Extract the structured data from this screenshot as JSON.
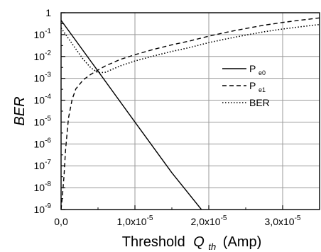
{
  "chart_data": {
    "type": "line",
    "title": "",
    "xlabel": "Threshold",
    "xlabel_var": "Q",
    "xlabel_sub": "th",
    "xlabel_unit": "(Amp)",
    "ylabel": "BER",
    "xlim": [
      0,
      3.5e-05
    ],
    "ylim": [
      1e-09,
      1
    ],
    "y_scale": "log",
    "grid": true,
    "legend_position": "right-middle",
    "x_ticks": [
      {
        "value": 0,
        "mantissa": "0,0",
        "exp": ""
      },
      {
        "value": 1e-05,
        "mantissa": "1,0x10",
        "exp": "-5"
      },
      {
        "value": 2e-05,
        "mantissa": "2,0x10",
        "exp": "-5"
      },
      {
        "value": 3e-05,
        "mantissa": "3,0x10",
        "exp": "-5"
      }
    ],
    "y_ticks": [
      {
        "value": 1,
        "base": "1",
        "exp": ""
      },
      {
        "value": 0.1,
        "base": "10",
        "exp": "-1"
      },
      {
        "value": 0.01,
        "base": "10",
        "exp": "-2"
      },
      {
        "value": 0.001,
        "base": "10",
        "exp": "-3"
      },
      {
        "value": 0.0001,
        "base": "10",
        "exp": "-4"
      },
      {
        "value": 1e-05,
        "base": "10",
        "exp": "-5"
      },
      {
        "value": 1e-06,
        "base": "10",
        "exp": "-6"
      },
      {
        "value": 1e-07,
        "base": "10",
        "exp": "-7"
      },
      {
        "value": 1e-08,
        "base": "10",
        "exp": "-8"
      },
      {
        "value": 1e-09,
        "base": "10",
        "exp": "-9"
      }
    ],
    "series": [
      {
        "name": "P",
        "name_sub": "e0",
        "style": "solid",
        "x": [
          0,
          5e-06,
          1e-05,
          1.5e-05,
          1.9e-05
        ],
        "y": [
          0.45,
          0.00214,
          1e-05,
          4.8e-08,
          1e-09
        ]
      },
      {
        "name": "P",
        "name_sub": "e1",
        "style": "dashed",
        "x": [
          0,
          2e-07,
          4e-07,
          6e-07,
          1e-06,
          1.5e-06,
          2e-06,
          3e-06,
          4e-06,
          5e-06,
          6e-06,
          8e-06,
          1e-05,
          1.25e-05,
          1.5e-05,
          1.75e-05,
          2e-05,
          2.25e-05,
          2.5e-05,
          2.75e-05,
          3e-05,
          3.25e-05,
          3.5e-05
        ],
        "y": [
          1e-09,
          5e-09,
          3.5e-08,
          5e-07,
          1.5e-05,
          0.00011,
          0.00033,
          0.00085,
          0.0015,
          0.0024,
          0.0037,
          0.0073,
          0.012,
          0.021,
          0.034,
          0.052,
          0.085,
          0.13,
          0.19,
          0.27,
          0.36,
          0.46,
          0.58
        ]
      },
      {
        "name": "BER",
        "style": "dotted",
        "x": [
          0,
          1e-06,
          2e-06,
          3e-06,
          4e-06,
          5e-06,
          6e-06,
          8e-06,
          1e-05,
          1.25e-05,
          1.5e-05,
          1.75e-05,
          2e-05,
          2.25e-05,
          2.5e-05,
          2.75e-05,
          3e-05,
          3.25e-05,
          3.5e-05
        ],
        "y": [
          0.2,
          0.066,
          0.022,
          0.0074,
          0.0031,
          0.0018,
          0.0019,
          0.0037,
          0.0062,
          0.0105,
          0.017,
          0.026,
          0.043,
          0.065,
          0.095,
          0.135,
          0.18,
          0.23,
          0.29
        ]
      }
    ]
  }
}
